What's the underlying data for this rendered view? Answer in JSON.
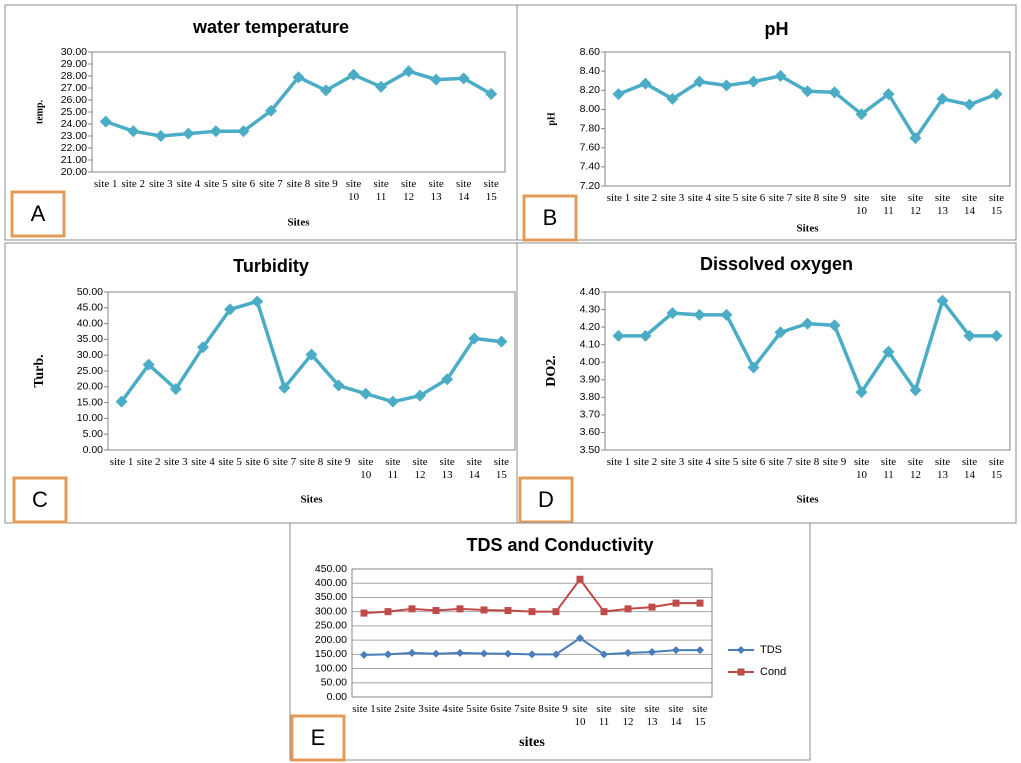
{
  "chart_data": [
    {
      "type": "line",
      "title": "water temperature",
      "panel_label": "A",
      "x_label": "Sites",
      "y_label": "temp.",
      "categories": [
        "site 1",
        "site 2",
        "site 3",
        "site 4",
        "site 5",
        "site 6",
        "site 7",
        "site 8",
        "site 9",
        "site 10",
        "site 11",
        "site 12",
        "site 13",
        "site 14",
        "site 15"
      ],
      "series": [
        {
          "color": "#4bacc6",
          "marker": "diamond",
          "values": [
            24.2,
            23.4,
            23.0,
            23.2,
            23.4,
            23.4,
            25.1,
            27.9,
            26.8,
            28.1,
            27.1,
            28.4,
            27.7,
            27.8,
            26.5
          ]
        }
      ],
      "ylim": [
        20,
        30
      ],
      "yticks": [
        {
          "value": 20,
          "label": "20.00"
        },
        {
          "value": 21,
          "label": "21.00"
        },
        {
          "value": 22,
          "label": "22.00"
        },
        {
          "value": 23,
          "label": "23.00"
        },
        {
          "value": 24,
          "label": "24.00"
        },
        {
          "value": 25,
          "label": "25.00"
        },
        {
          "value": 26,
          "label": "26.00"
        },
        {
          "value": 27,
          "label": "27.00"
        },
        {
          "value": 28,
          "label": "28.00"
        },
        {
          "value": 29,
          "label": "29.00"
        },
        {
          "value": 30,
          "label": "30.00"
        }
      ],
      "grid": false
    },
    {
      "type": "line",
      "title": "pH",
      "panel_label": "B",
      "x_label": "Sites",
      "y_label": "pH",
      "categories": [
        "site 1",
        "site 2",
        "site 3",
        "site 4",
        "site 5",
        "site 6",
        "site 7",
        "site 8",
        "site 9",
        "site 10",
        "site 11",
        "site 12",
        "site 13",
        "site 14",
        "site 15"
      ],
      "series": [
        {
          "color": "#4bacc6",
          "marker": "diamond",
          "values": [
            8.16,
            8.27,
            8.11,
            8.29,
            8.25,
            8.29,
            8.35,
            8.19,
            8.18,
            7.95,
            8.16,
            7.7,
            8.11,
            8.05,
            8.16
          ]
        }
      ],
      "ylim": [
        7.2,
        8.6
      ],
      "yticks": [
        {
          "value": 7.2,
          "label": "7.20"
        },
        {
          "value": 7.4,
          "label": "7.40"
        },
        {
          "value": 7.6,
          "label": "7.60"
        },
        {
          "value": 7.8,
          "label": "7.80"
        },
        {
          "value": 8.0,
          "label": "8.00"
        },
        {
          "value": 8.2,
          "label": "8.20"
        },
        {
          "value": 8.4,
          "label": "8.40"
        },
        {
          "value": 8.6,
          "label": "8.60"
        }
      ],
      "grid": false
    },
    {
      "type": "line",
      "title": "Turbidity",
      "panel_label": "C",
      "x_label": "Sites",
      "y_label": "Turb.",
      "categories": [
        "site 1",
        "site 2",
        "site 3",
        "site 4",
        "site 5",
        "site 6",
        "site 7",
        "site 8",
        "site 9",
        "site 10",
        "site 11",
        "site 12",
        "site 13",
        "site 14",
        "site 15"
      ],
      "series": [
        {
          "color": "#4bacc6",
          "marker": "diamond",
          "values": [
            15.3,
            27.0,
            19.3,
            32.5,
            44.5,
            47.0,
            19.7,
            30.2,
            20.4,
            17.8,
            15.3,
            17.2,
            22.4,
            35.3,
            34.3
          ]
        }
      ],
      "ylim": [
        0,
        50
      ],
      "yticks": [
        {
          "value": 0,
          "label": "0.00"
        },
        {
          "value": 5,
          "label": "5.00"
        },
        {
          "value": 10,
          "label": "10.00"
        },
        {
          "value": 15,
          "label": "15.00"
        },
        {
          "value": 20,
          "label": "20.00"
        },
        {
          "value": 25,
          "label": "25.00"
        },
        {
          "value": 30,
          "label": "30.00"
        },
        {
          "value": 35,
          "label": "35.00"
        },
        {
          "value": 40,
          "label": "40.00"
        },
        {
          "value": 45,
          "label": "45.00"
        },
        {
          "value": 50,
          "label": "50.00"
        }
      ],
      "grid": false
    },
    {
      "type": "line",
      "title": "Dissolved oxygen",
      "panel_label": "D",
      "x_label": "Sites",
      "y_label": "DO2.",
      "categories": [
        "site 1",
        "site 2",
        "site 3",
        "site 4",
        "site 5",
        "site 6",
        "site 7",
        "site 8",
        "site 9",
        "site 10",
        "site 11",
        "site 12",
        "site 13",
        "site 14",
        "site 15"
      ],
      "series": [
        {
          "color": "#4bacc6",
          "marker": "diamond",
          "values": [
            4.15,
            4.15,
            4.28,
            4.27,
            4.27,
            3.97,
            4.17,
            4.22,
            4.21,
            3.83,
            4.06,
            3.84,
            4.35,
            4.15,
            4.15
          ]
        }
      ],
      "ylim": [
        3.5,
        4.4
      ],
      "yticks": [
        {
          "value": 3.5,
          "label": "3.50"
        },
        {
          "value": 3.6,
          "label": "3.60"
        },
        {
          "value": 3.7,
          "label": "3.70"
        },
        {
          "value": 3.8,
          "label": "3.80"
        },
        {
          "value": 3.9,
          "label": "3.90"
        },
        {
          "value": 4.0,
          "label": "4.00"
        },
        {
          "value": 4.1,
          "label": "4.10"
        },
        {
          "value": 4.2,
          "label": "4.20"
        },
        {
          "value": 4.3,
          "label": "4.30"
        },
        {
          "value": 4.4,
          "label": "4.40"
        }
      ],
      "grid": false
    },
    {
      "type": "line",
      "title": "TDS and Conductivity",
      "panel_label": "E",
      "x_label": "sites",
      "categories": [
        "site 1",
        "site 2",
        "site 3",
        "site 4",
        "site 5",
        "site 6",
        "site 7",
        "site 8",
        "site 9",
        "site 10",
        "site 11",
        "site 12",
        "site 13",
        "site 14",
        "site 15"
      ],
      "series": [
        {
          "name": "TDS",
          "color": "#4a7ebb",
          "marker": "diamond",
          "values": [
            148,
            150,
            155,
            152,
            155,
            153,
            152,
            150,
            150,
            207,
            150,
            155,
            158,
            165,
            165
          ]
        },
        {
          "name": "Cond",
          "color": "#be4b48",
          "marker": "square",
          "values": [
            295,
            300,
            310,
            304,
            310,
            306,
            304,
            300,
            300,
            414,
            300,
            310,
            316,
            330,
            330
          ]
        }
      ],
      "ylim": [
        0,
        450
      ],
      "yticks": [
        {
          "value": 0,
          "label": "0.00"
        },
        {
          "value": 50,
          "label": "50.00"
        },
        {
          "value": 100,
          "label": "100.00"
        },
        {
          "value": 150,
          "label": "150.00"
        },
        {
          "value": 200,
          "label": "200.00"
        },
        {
          "value": 250,
          "label": "250.00"
        },
        {
          "value": 300,
          "label": "300.00"
        },
        {
          "value": 350,
          "label": "350.00"
        },
        {
          "value": 400,
          "label": "400.00"
        },
        {
          "value": 450,
          "label": "450.00"
        }
      ],
      "grid": true,
      "legend": "right"
    }
  ]
}
